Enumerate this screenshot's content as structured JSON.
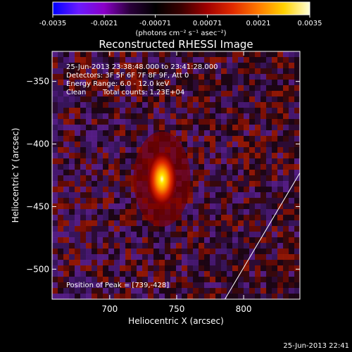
{
  "colorbar": {
    "ticks": [
      "-0.0035",
      "-0.0021",
      "-0.00071",
      "0.00071",
      "0.0021",
      "0.0035"
    ],
    "tick_values": [
      -0.0035,
      -0.0021,
      -0.00071,
      0.00071,
      0.0021,
      0.0035
    ],
    "range": [
      -0.0035,
      0.0035
    ],
    "units": "(photons cm⁻² s⁻¹ asec⁻²)",
    "colors": [
      "#0000ff",
      "#6a1aff",
      "#8a00c8",
      "#2a003a",
      "#000000",
      "#3a0000",
      "#a00000",
      "#e02a00",
      "#ff7a00",
      "#ffd200",
      "#ffffd8"
    ]
  },
  "title": "Reconstructed RHESSI Image",
  "annotations": {
    "time": "25-Jun-2013 23:38:48.000 to 23:41:28.000",
    "detectors": "Detectors: 3F 5F 6F 7F 8F 9F, Att 0",
    "energy": "Energy Range: 6.0 - 12.0 keV",
    "clean_label": "Clean",
    "counts": "Total counts: 1.23E+04",
    "peak": "Position of Peak = [739,-428]"
  },
  "footer_timestamp": "25-Jun-2013 22:41",
  "chart_data": {
    "type": "heatmap",
    "title": "Reconstructed RHESSI Image",
    "xlabel": "Heliocentric X (arcsec)",
    "ylabel": "Heliocentric Y (arcsec)",
    "xlim": [
      657,
      842
    ],
    "ylim": [
      -524,
      -326
    ],
    "x_ticks": [
      {
        "value": 700,
        "label": "700"
      },
      {
        "value": 750,
        "label": "750"
      },
      {
        "value": 800,
        "label": "800"
      }
    ],
    "y_ticks": [
      {
        "value": -350,
        "label": "−350"
      },
      {
        "value": -400,
        "label": "−400"
      },
      {
        "value": -450,
        "label": "−450"
      },
      {
        "value": -500,
        "label": "−500"
      }
    ],
    "peak": {
      "x": 739,
      "y": -428
    },
    "source": {
      "x": 739,
      "y": -428,
      "sigma_x": 7,
      "sigma_y": 14
    },
    "limb_line": {
      "x": [
        786,
        842
      ],
      "y": [
        -524,
        -423
      ]
    },
    "grid": false,
    "legend": "none"
  }
}
